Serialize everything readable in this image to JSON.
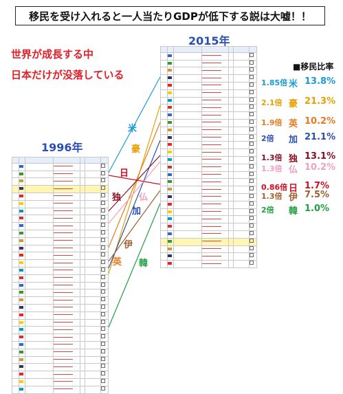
{
  "title": "移民を受け入れると一人当たりGDPが低下する説は大嘘！！",
  "caption": [
    "世界が成長する中",
    "日本だけが没落している"
  ],
  "year_right": "2015年",
  "year_left": "1996年",
  "legend_title": "■移民比率",
  "colors": {
    "米": "#1a9ad6",
    "豪": "#e8a000",
    "英": "#e87a20",
    "加": "#2a4fb0",
    "独": "#8a1020",
    "仏": "#f0a0c0",
    "日": "#d01020",
    "伊": "#a06030",
    "韓": "#20a040"
  },
  "rows": [
    {
      "country": "米",
      "ratio": "1.85倍",
      "pct": "13.8%",
      "color": "#1a9ad6"
    },
    {
      "country": "豪",
      "ratio": "2.1倍",
      "pct": "21.3%",
      "color": "#e8a000"
    },
    {
      "country": "英",
      "ratio": "1.9倍",
      "pct": "10.2%",
      "color": "#e87a20"
    },
    {
      "country": "加",
      "ratio": "2倍",
      "pct": "21.1%",
      "color": "#2a4fb0"
    },
    {
      "country": "独",
      "ratio": "1.3倍",
      "pct": "13.1%",
      "color": "#8a1020"
    },
    {
      "country": "仏",
      "ratio": "1.3倍",
      "pct": "10.2%",
      "color": "#f0a0c0"
    },
    {
      "country": "日",
      "ratio": "0.86倍",
      "pct": "1.7%",
      "color": "#d01020"
    },
    {
      "country": "伊",
      "ratio": "1.3倍",
      "pct": "7.5%",
      "color": "#a06030"
    },
    {
      "country": "韓",
      "ratio": "2倍",
      "pct": "1.0%",
      "color": "#20a040"
    }
  ],
  "line_labels": {
    "米": "米",
    "豪": "豪",
    "日": "日",
    "独": "独",
    "仏": "仏",
    "加": "加",
    "伊": "伊",
    "英": "英",
    "韓": "韓"
  }
}
